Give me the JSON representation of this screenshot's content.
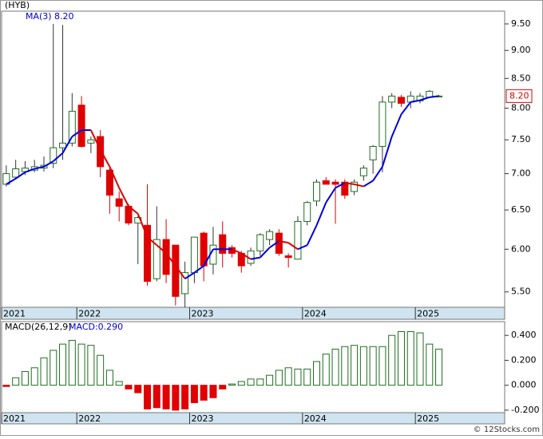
{
  "chart_data": [
    {
      "type": "candlestick",
      "title": "(HYB)",
      "ma_name": "MA(3)",
      "ma_value_label": "8.20",
      "price_tag": "8.20",
      "log_scale": true,
      "up_color": "#1f6f1f",
      "down_color": "#e00000",
      "ma_up_color": "#0000dd",
      "ma_down_color": "#dd0000",
      "xlim": [
        -0.5,
        53
      ],
      "xticks": [
        {
          "value": -0.5,
          "label": "2021"
        },
        {
          "value": 7.5,
          "label": "2022"
        },
        {
          "value": 19.5,
          "label": "2023"
        },
        {
          "value": 31.5,
          "label": "2024"
        },
        {
          "value": 43.5,
          "label": "2025"
        }
      ],
      "ylim": [
        5.33,
        9.75
      ],
      "yticks": [
        {
          "value": 5.5,
          "label": "5.50"
        },
        {
          "value": 6,
          "label": "6.00"
        },
        {
          "value": 6.5,
          "label": "6.50"
        },
        {
          "value": 7,
          "label": "7.00"
        },
        {
          "value": 7.5,
          "label": "7.50"
        },
        {
          "value": 8,
          "label": "8.00"
        },
        {
          "value": 8.5,
          "label": "8.50"
        },
        {
          "value": 9,
          "label": "9.00"
        },
        {
          "value": 9.5,
          "label": "9.50"
        }
      ],
      "open": [
        6.85,
        6.95,
        7.03,
        7.05,
        7.08,
        7.15,
        7.38,
        7.45,
        8.05,
        7.45,
        7.55,
        7.05,
        6.65,
        6.55,
        6.33,
        6.3,
        5.65,
        6.12,
        6.05,
        5.48,
        5.72,
        6.2,
        5.82,
        6.18,
        6.02,
        5.95,
        5.83,
        5.98,
        6.12,
        6.2,
        5.92,
        5.88,
        6.35,
        6.62,
        6.9,
        6.88,
        6.88,
        6.75,
        6.97,
        7.2,
        7.4,
        8.1,
        8.18,
        8.1,
        8.12,
        8.18,
        8.2
      ],
      "high": [
        7.12,
        7.2,
        7.18,
        7.2,
        7.25,
        9.5,
        9.48,
        8.25,
        8.2,
        7.55,
        7.65,
        7.1,
        6.75,
        6.58,
        6.42,
        6.85,
        6.55,
        6.38,
        6.05,
        5.85,
        6.15,
        6.22,
        6.28,
        6.35,
        6.05,
        5.98,
        6.02,
        6.2,
        6.25,
        6.25,
        5.95,
        6.42,
        6.62,
        6.92,
        6.95,
        6.92,
        6.92,
        6.92,
        7.12,
        7.42,
        8.2,
        8.25,
        8.22,
        8.28,
        8.25,
        8.3,
        8.22
      ],
      "low": [
        6.82,
        6.92,
        6.98,
        7.02,
        7.03,
        7.08,
        7.2,
        7.4,
        7.38,
        7.3,
        6.95,
        6.45,
        6.35,
        6.3,
        5.82,
        5.57,
        5.62,
        5.6,
        5.35,
        5.33,
        5.6,
        5.62,
        5.7,
        5.78,
        5.9,
        5.72,
        5.8,
        5.92,
        6.05,
        5.92,
        5.78,
        5.88,
        6.3,
        6.55,
        6.85,
        6.32,
        6.65,
        6.7,
        6.9,
        7.0,
        7.02,
        8.0,
        8.02,
        8.0,
        8.08,
        8.18,
        8.18
      ],
      "close": [
        7.0,
        7.07,
        7.08,
        7.1,
        7.12,
        7.38,
        7.45,
        7.95,
        7.4,
        7.5,
        7.1,
        6.7,
        6.55,
        6.33,
        6.4,
        5.62,
        6.12,
        5.7,
        5.45,
        5.72,
        6.15,
        5.8,
        6.05,
        5.95,
        5.95,
        5.8,
        5.98,
        6.18,
        6.22,
        5.95,
        5.9,
        6.35,
        6.6,
        6.88,
        6.85,
        6.85,
        6.7,
        6.88,
        7.08,
        7.4,
        8.1,
        8.2,
        8.08,
        8.2,
        8.2,
        8.28,
        8.2
      ],
      "ma": [
        6.85,
        6.93,
        7.02,
        7.07,
        7.1,
        7.18,
        7.3,
        7.55,
        7.65,
        7.65,
        7.35,
        7.1,
        6.8,
        6.55,
        6.45,
        6.15,
        6.05,
        5.95,
        5.8,
        5.65,
        5.72,
        5.8,
        6.0,
        6.0,
        6.0,
        5.95,
        5.88,
        5.9,
        6.02,
        6.1,
        6.08,
        6.0,
        6.05,
        6.3,
        6.6,
        6.8,
        6.87,
        6.85,
        6.82,
        6.9,
        7.1,
        7.55,
        7.9,
        8.1,
        8.13,
        8.18,
        8.2
      ]
    },
    {
      "type": "macd",
      "title": "MACD(26,12,9)",
      "last_label": "MACD:0.290",
      "up_color": "#1f6f1f",
      "down_color": "#e00000",
      "xlim": [
        -0.5,
        53
      ],
      "xticks": [
        {
          "value": -0.5,
          "label": "2021"
        },
        {
          "value": 7.5,
          "label": "2022"
        },
        {
          "value": 19.5,
          "label": "2023"
        },
        {
          "value": 31.5,
          "label": "2024"
        },
        {
          "value": 43.5,
          "label": "2025"
        }
      ],
      "ylim": [
        -0.22,
        0.51
      ],
      "yticks": [
        {
          "value": -0.2,
          "label": "-0.200"
        },
        {
          "value": 0,
          "label": "0.000"
        },
        {
          "value": 0.2,
          "label": "0.200"
        },
        {
          "value": 0.4,
          "label": "0.400"
        }
      ],
      "values": [
        -0.01,
        0.06,
        0.11,
        0.14,
        0.22,
        0.28,
        0.33,
        0.36,
        0.33,
        0.32,
        0.24,
        0.12,
        0.03,
        -0.03,
        -0.06,
        -0.19,
        -0.18,
        -0.19,
        -0.2,
        -0.19,
        -0.14,
        -0.12,
        -0.1,
        -0.03,
        0.01,
        0.03,
        0.05,
        0.05,
        0.08,
        0.12,
        0.14,
        0.13,
        0.13,
        0.19,
        0.25,
        0.29,
        0.31,
        0.32,
        0.31,
        0.31,
        0.31,
        0.4,
        0.43,
        0.43,
        0.42,
        0.33,
        0.29
      ]
    }
  ],
  "watermark": "© 12Stocks.com"
}
